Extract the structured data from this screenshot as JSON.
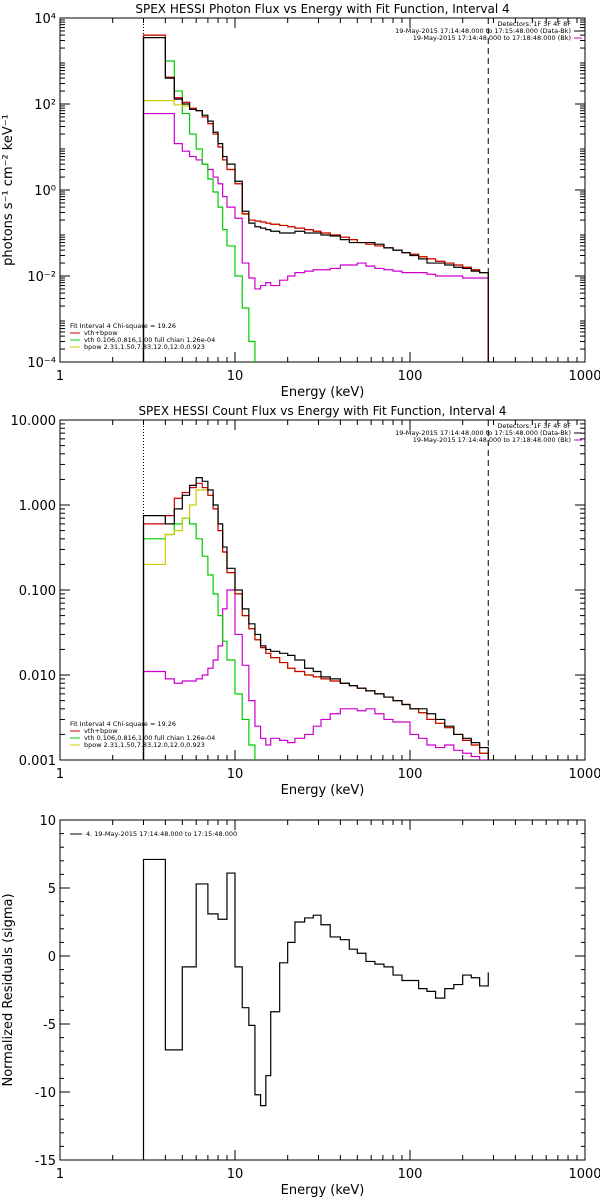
{
  "colors": {
    "data": "#000000",
    "bk": "#cc00cc",
    "total": "#cc0000",
    "vth": "#00cc00",
    "bpow": "#cccc00"
  },
  "chart_data": [
    {
      "type": "line",
      "title": "SPEX HESSI Photon Flux vs Energy with Fit Function, Interval 4",
      "xlabel": "Energy (keV)",
      "ylabel": "photons s⁻¹ cm⁻² keV⁻¹",
      "xlim": [
        1,
        1000
      ],
      "ylim": [
        0.0001,
        10000
      ],
      "xscale": "log",
      "yscale": "log",
      "xticks": [
        "1",
        "10",
        "100",
        "1000"
      ],
      "yticks": [
        "10⁻⁴",
        "10⁻²",
        "10⁰",
        "10²",
        "10⁴"
      ],
      "legend_top": [
        "Detectors: 1F 3F 4F 8F",
        "19-May-2015 17:14:48.000 to 17:15:48.000 (Data-Bk)",
        "19-May-2015 17:14:48.000 to 17:18:48.000 (Bk)"
      ],
      "legend_bottom": [
        "Fit Interval  4   Chi-square = 19.26",
        "vth+bpow",
        "vth 0.106,0.816,1.00  full chian 1.26e-04",
        "bpow  2.31,1.50,7.83,12.0,12.0,0.923"
      ],
      "vlines": [
        3,
        280
      ],
      "edges": [
        3,
        3.5,
        4,
        4.5,
        5,
        5.5,
        6,
        6.5,
        7,
        7.5,
        8,
        8.5,
        9,
        10,
        11,
        12,
        13,
        14,
        15,
        16,
        18,
        20,
        22,
        25,
        28,
        31,
        35,
        40,
        45,
        50,
        56,
        63,
        71,
        80,
        90,
        100,
        112,
        125,
        140,
        158,
        178,
        200,
        224,
        250,
        280
      ],
      "series": [
        {
          "name": "Data-Bk",
          "values": [
            3500,
            3500,
            400,
            130,
            100,
            75,
            70,
            55,
            40,
            22,
            12,
            6,
            4,
            1.6,
            0.32,
            0.17,
            0.14,
            0.13,
            0.12,
            0.11,
            0.1,
            0.1,
            0.11,
            0.1,
            0.1,
            0.09,
            0.085,
            0.07,
            0.06,
            0.06,
            0.06,
            0.055,
            0.045,
            0.04,
            0.035,
            0.03,
            0.025,
            0.02,
            0.02,
            0.018,
            0.016,
            0.015,
            0.013,
            0.012
          ]
        },
        {
          "name": "Bk",
          "values": [
            60,
            60,
            60,
            12,
            8,
            6,
            5,
            4,
            3,
            2,
            1.4,
            0.7,
            0.4,
            0.22,
            0.02,
            0.009,
            0.005,
            0.006,
            0.007,
            0.006,
            0.008,
            0.01,
            0.012,
            0.013,
            0.014,
            0.014,
            0.015,
            0.018,
            0.018,
            0.02,
            0.017,
            0.015,
            0.014,
            0.013,
            0.012,
            0.012,
            0.012,
            0.011,
            0.01,
            0.01,
            0.01,
            0.009,
            0.009,
            0.009
          ]
        },
        {
          "name": "vth+bpow",
          "values": [
            4000,
            4000,
            420,
            140,
            110,
            80,
            70,
            50,
            35,
            20,
            10,
            5,
            3,
            1.4,
            0.28,
            0.2,
            0.19,
            0.18,
            0.17,
            0.16,
            0.15,
            0.14,
            0.13,
            0.12,
            0.11,
            0.1,
            0.09,
            0.08,
            0.07,
            0.06,
            0.055,
            0.05,
            0.045,
            0.04,
            0.035,
            0.032,
            0.028,
            0.025,
            0.022,
            0.02,
            0.018,
            0.016,
            0.014,
            0.012
          ]
        },
        {
          "name": "vth",
          "values": [
            4000,
            4000,
            1000,
            200,
            60,
            20,
            9,
            4,
            1.8,
            0.9,
            0.4,
            0.12,
            0.05,
            0.01,
            0.0018,
            0.0003,
            5e-05
          ]
        },
        {
          "name": "bpow",
          "values": [
            120,
            120,
            120,
            95,
            90,
            80,
            70,
            50,
            35,
            20,
            10,
            5,
            3,
            1.4,
            0.27,
            0.2,
            0.19,
            0.18,
            0.17,
            0.16,
            0.15,
            0.14,
            0.13,
            0.12,
            0.11,
            0.1,
            0.09,
            0.08,
            0.07,
            0.06,
            0.055,
            0.05,
            0.045,
            0.04,
            0.035,
            0.032,
            0.028,
            0.025,
            0.022,
            0.02,
            0.018,
            0.016,
            0.014,
            0.012
          ]
        }
      ]
    },
    {
      "type": "line",
      "title": "SPEX HESSI Count Flux vs Energy with Fit Function, Interval 4",
      "xlabel": "Energy (keV)",
      "ylabel": "",
      "xlim": [
        1,
        1000
      ],
      "ylim": [
        0.001,
        10
      ],
      "xscale": "log",
      "yscale": "log",
      "xticks": [
        "1",
        "10",
        "100",
        "1000"
      ],
      "yticks": [
        "0.001",
        "0.010",
        "0.100",
        "1.000",
        "10.000"
      ],
      "legend_top": [
        "Detectors: 1F 3F 4F 8F",
        "19-May-2015 17:14:48.000 to 17:15:48.000 (Data-Bk)",
        "19-May-2015 17:14:48.000 to 17:18:48.000 (Bk)"
      ],
      "legend_bottom": [
        "Fit Interval  4   Chi-square = 19.26",
        "vth+bpow",
        "vth 0.106,0.816,1.00  full chian 1.26e-04",
        "bpow  2.31,1.50,7.83,12.0,12.0,0.923"
      ],
      "vlines": [
        3,
        280
      ],
      "edges": [
        3,
        3.5,
        4,
        4.5,
        5,
        5.5,
        6,
        6.5,
        7,
        7.5,
        8,
        8.5,
        9,
        10,
        11,
        12,
        13,
        14,
        15,
        16,
        18,
        20,
        22,
        25,
        28,
        31,
        35,
        40,
        45,
        50,
        56,
        63,
        71,
        80,
        90,
        100,
        112,
        125,
        140,
        158,
        178,
        200,
        224,
        250,
        280
      ],
      "series": [
        {
          "name": "Data-Bk",
          "values": [
            0.75,
            0.75,
            0.6,
            0.9,
            1.3,
            1.7,
            2.1,
            1.9,
            1.5,
            1.0,
            0.6,
            0.32,
            0.18,
            0.1,
            0.06,
            0.04,
            0.03,
            0.022,
            0.02,
            0.019,
            0.018,
            0.017,
            0.015,
            0.012,
            0.011,
            0.0095,
            0.009,
            0.008,
            0.0075,
            0.007,
            0.0065,
            0.006,
            0.0055,
            0.005,
            0.0045,
            0.004,
            0.004,
            0.0035,
            0.003,
            0.0025,
            0.002,
            0.0018,
            0.0016,
            0.0014
          ]
        },
        {
          "name": "Bk",
          "values": [
            0.011,
            0.011,
            0.009,
            0.008,
            0.0085,
            0.0085,
            0.009,
            0.01,
            0.012,
            0.015,
            0.022,
            0.06,
            0.1,
            0.03,
            0.013,
            0.005,
            0.0025,
            0.0018,
            0.0015,
            0.0018,
            0.0017,
            0.0016,
            0.0018,
            0.002,
            0.0025,
            0.003,
            0.0035,
            0.004,
            0.004,
            0.0038,
            0.004,
            0.0035,
            0.003,
            0.0028,
            0.0028,
            0.002,
            0.0018,
            0.0015,
            0.0014,
            0.0015,
            0.0013,
            0.0012,
            0.0011,
            0.001
          ]
        },
        {
          "name": "vth+bpow",
          "values": [
            0.6,
            0.6,
            0.75,
            1.2,
            1.4,
            1.6,
            1.8,
            1.6,
            1.3,
            0.9,
            0.5,
            0.28,
            0.16,
            0.09,
            0.05,
            0.035,
            0.026,
            0.021,
            0.018,
            0.016,
            0.014,
            0.012,
            0.011,
            0.01,
            0.0095,
            0.009,
            0.0085,
            0.008,
            0.0075,
            0.007,
            0.0065,
            0.006,
            0.0055,
            0.005,
            0.0045,
            0.004,
            0.0036,
            0.003,
            0.0027,
            0.0024,
            0.002,
            0.0017,
            0.0015,
            0.0012
          ]
        },
        {
          "name": "vth",
          "values": [
            0.4,
            0.4,
            0.45,
            0.6,
            0.7,
            0.6,
            0.4,
            0.25,
            0.15,
            0.09,
            0.05,
            0.025,
            0.015,
            0.006,
            0.003,
            0.0015,
            0.0009
          ]
        },
        {
          "name": "bpow",
          "values": [
            0.2,
            0.2,
            0.45,
            0.5,
            0.7,
            1.0,
            1.5,
            1.5,
            1.3,
            0.9,
            0.5,
            0.28,
            0.16,
            0.09,
            0.05,
            0.035,
            0.026,
            0.021,
            0.018,
            0.016,
            0.014,
            0.012,
            0.011,
            0.01,
            0.0095,
            0.009,
            0.0085,
            0.008,
            0.0075,
            0.007,
            0.0065,
            0.006,
            0.0055,
            0.005,
            0.0045,
            0.004,
            0.0036,
            0.003,
            0.0027,
            0.0024,
            0.002,
            0.0017,
            0.0015,
            0.0012
          ]
        }
      ]
    },
    {
      "type": "line",
      "title": "",
      "xlabel": "Energy (keV)",
      "ylabel": "Normalized Residuals (sigma)",
      "xlim": [
        1,
        1000
      ],
      "ylim": [
        -15,
        10
      ],
      "xscale": "log",
      "yscale": "linear",
      "xticks": [
        "1",
        "10",
        "100",
        "1000"
      ],
      "yticks": [
        "-15",
        "-10",
        "-5",
        "0",
        "5",
        "10"
      ],
      "legend_top": [
        "4. 19-May-2015 17:14:48.000 to 17:15:48.000"
      ],
      "edges": [
        3,
        4,
        5,
        6,
        7,
        8,
        9,
        10,
        11,
        12,
        13,
        14,
        15,
        16,
        18,
        20,
        22,
        25,
        28,
        31,
        35,
        40,
        45,
        50,
        56,
        63,
        71,
        80,
        90,
        100,
        112,
        125,
        140,
        158,
        178,
        200,
        224,
        250,
        280
      ],
      "series": [
        {
          "name": "4. 19-May-2015 17:14:48.000 to 17:15:48.000",
          "values": [
            7.1,
            -6.9,
            -0.8,
            5.3,
            3.1,
            2.7,
            6.1,
            -0.8,
            -3.8,
            -5.1,
            -10.2,
            -11,
            -8.8,
            -4.1,
            -0.5,
            1.0,
            2.5,
            2.8,
            3.0,
            2.3,
            1.4,
            1.2,
            0.5,
            0.2,
            -0.4,
            -0.6,
            -0.8,
            -1.4,
            -1.8,
            -1.8,
            -2.4,
            -2.6,
            -3.1,
            -2.4,
            -2.1,
            -1.4,
            -1.6,
            -2.2,
            -1.2
          ]
        }
      ]
    }
  ]
}
